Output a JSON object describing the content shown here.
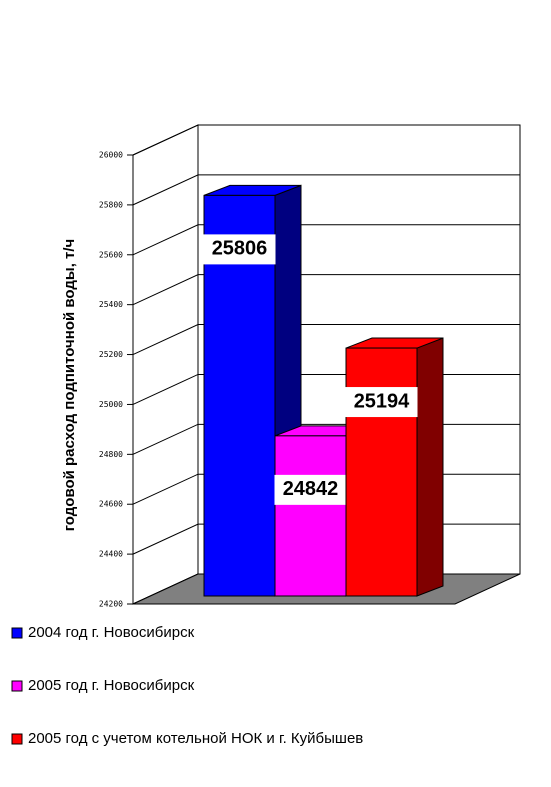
{
  "chart_data": {
    "type": "bar",
    "y_label": "годовой расход подпиточной воды, т/ч",
    "categories": [
      null
    ],
    "series": [
      {
        "name": "2004 год г. Новосибирск",
        "color": "#0000ff",
        "side_color": "#000080",
        "values": [
          25806
        ]
      },
      {
        "name": "2005 год г. Новосибирск",
        "color": "#ff00ff",
        "side_color": "#800080",
        "values": [
          24842
        ]
      },
      {
        "name": "2005 год с учетом котельной НОК и г. Куйбышев",
        "color": "#ff0000",
        "side_color": "#800000",
        "values": [
          25194
        ]
      }
    ],
    "ylim": [
      24200,
      26000
    ],
    "yticks": [
      24200,
      24400,
      24600,
      24800,
      25000,
      25200,
      25400,
      25600,
      25800,
      26000
    ],
    "grid": true,
    "data_labels": true,
    "legend": "bottom"
  }
}
